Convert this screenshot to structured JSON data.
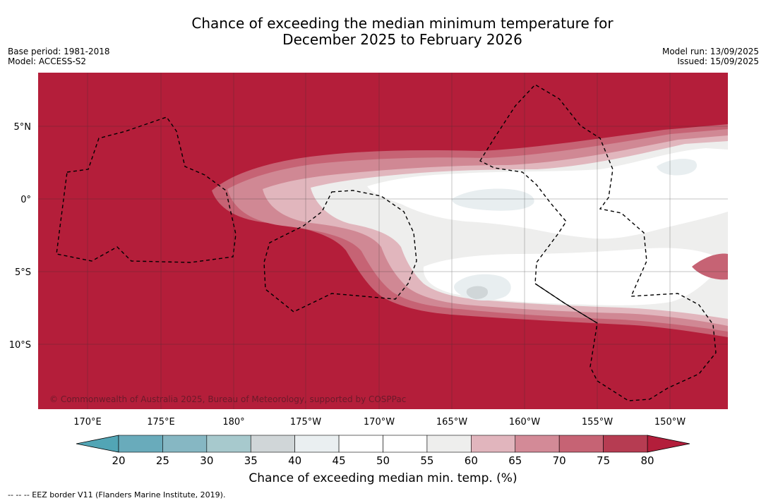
{
  "title_line1": "Chance of exceeding the median minimum temperature for",
  "title_line2": "December 2025 to February 2026",
  "meta_left": [
    "Base period: 1981-2018",
    "Model: ACCESS-S2"
  ],
  "meta_right": [
    "Model run: 13/09/2025",
    "Issued: 15/09/2025"
  ],
  "copyright": "© Commonwealth of Australia 2025, Bureau of Meteorology, supported by COSPPac",
  "lon_labels": [
    "170°E",
    "175°E",
    "180°",
    "175°W",
    "170°W",
    "165°W",
    "160°W",
    "155°W",
    "150°W"
  ],
  "lat_labels": [
    "5°N",
    "0°",
    "5°S",
    "10°S"
  ],
  "colorbar": {
    "ticks": [
      "20",
      "25",
      "30",
      "35",
      "40",
      "45",
      "50",
      "55",
      "60",
      "65",
      "70",
      "75",
      "80"
    ],
    "colors": [
      "#69abbb",
      "#86b7c3",
      "#a7c9cd",
      "#d0d6d8",
      "#eaeff1",
      "#ffffff",
      "#ffffff",
      "#eeeeed",
      "#e1b5bd",
      "#d38a97",
      "#c66374",
      "#b63c52"
    ],
    "under_color": "#52a5b5",
    "over_color": "#b31e3b",
    "title": "Chance of exceeding median min. temp. (%)"
  },
  "colors": {
    "background": "#b41e3a",
    "c65": "#d08894",
    "c60": "#e1b6bd",
    "c55": "#eeeeed",
    "c50": "#ffffff",
    "c40": "#e8eef0",
    "c35": "#d0d6d8",
    "c70": "#c66374"
  },
  "footnote": "--  --  -- EEZ border V11 (Flanders Marine Institute, 2019)."
}
